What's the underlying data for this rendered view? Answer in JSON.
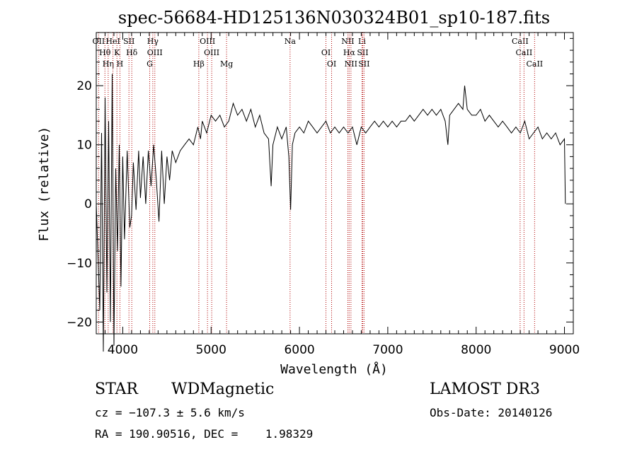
{
  "chart_data": {
    "type": "line",
    "title": "spec-56684-HD125136N030324B01_sp10-187.fits",
    "xlabel": "Wavelength (Å)",
    "ylabel": "Flux (relative)",
    "xlim": [
      3700,
      9100
    ],
    "ylim": [
      -22,
      29
    ],
    "x_ticks": [
      4000,
      5000,
      6000,
      7000,
      8000,
      9000
    ],
    "y_ticks": [
      -20,
      -10,
      0,
      10,
      20
    ],
    "grid": false,
    "series": [
      {
        "color": "#000000",
        "points": [
          [
            3700,
            0
          ],
          [
            3740,
            -18
          ],
          [
            3760,
            12
          ],
          [
            3780,
            -25
          ],
          [
            3800,
            18
          ],
          [
            3820,
            -15
          ],
          [
            3840,
            14
          ],
          [
            3860,
            -20
          ],
          [
            3880,
            22
          ],
          [
            3900,
            -24
          ],
          [
            3920,
            6
          ],
          [
            3940,
            -8
          ],
          [
            3960,
            10
          ],
          [
            3980,
            -14
          ],
          [
            4000,
            8
          ],
          [
            4020,
            -6
          ],
          [
            4050,
            9
          ],
          [
            4080,
            -4
          ],
          [
            4100,
            -2
          ],
          [
            4120,
            7
          ],
          [
            4150,
            -1
          ],
          [
            4180,
            9
          ],
          [
            4200,
            1
          ],
          [
            4230,
            8
          ],
          [
            4260,
            0
          ],
          [
            4290,
            9
          ],
          [
            4320,
            3
          ],
          [
            4350,
            10
          ],
          [
            4380,
            4
          ],
          [
            4410,
            -3
          ],
          [
            4440,
            9
          ],
          [
            4470,
            0
          ],
          [
            4500,
            8
          ],
          [
            4530,
            4
          ],
          [
            4560,
            9
          ],
          [
            4600,
            7
          ],
          [
            4650,
            9
          ],
          [
            4700,
            10
          ],
          [
            4750,
            11
          ],
          [
            4800,
            10
          ],
          [
            4850,
            13
          ],
          [
            4880,
            11
          ],
          [
            4900,
            14
          ],
          [
            4950,
            12
          ],
          [
            5000,
            15
          ],
          [
            5050,
            14
          ],
          [
            5100,
            15
          ],
          [
            5150,
            13
          ],
          [
            5200,
            14
          ],
          [
            5250,
            17
          ],
          [
            5300,
            15
          ],
          [
            5350,
            16
          ],
          [
            5400,
            14
          ],
          [
            5450,
            16
          ],
          [
            5500,
            13
          ],
          [
            5550,
            15
          ],
          [
            5600,
            12
          ],
          [
            5650,
            11
          ],
          [
            5680,
            3
          ],
          [
            5700,
            10
          ],
          [
            5750,
            13
          ],
          [
            5800,
            11
          ],
          [
            5850,
            13
          ],
          [
            5880,
            8
          ],
          [
            5900,
            -1
          ],
          [
            5920,
            10
          ],
          [
            5950,
            12
          ],
          [
            6000,
            13
          ],
          [
            6050,
            12
          ],
          [
            6100,
            14
          ],
          [
            6150,
            13
          ],
          [
            6200,
            12
          ],
          [
            6250,
            13
          ],
          [
            6300,
            14
          ],
          [
            6350,
            12
          ],
          [
            6400,
            13
          ],
          [
            6450,
            12
          ],
          [
            6500,
            13
          ],
          [
            6550,
            12
          ],
          [
            6600,
            13
          ],
          [
            6650,
            10
          ],
          [
            6700,
            13
          ],
          [
            6750,
            12
          ],
          [
            6800,
            13
          ],
          [
            6850,
            14
          ],
          [
            6900,
            13
          ],
          [
            6950,
            14
          ],
          [
            7000,
            13
          ],
          [
            7050,
            14
          ],
          [
            7100,
            13
          ],
          [
            7150,
            14
          ],
          [
            7200,
            14
          ],
          [
            7250,
            15
          ],
          [
            7300,
            14
          ],
          [
            7350,
            15
          ],
          [
            7400,
            16
          ],
          [
            7450,
            15
          ],
          [
            7500,
            16
          ],
          [
            7550,
            15
          ],
          [
            7600,
            16
          ],
          [
            7650,
            14
          ],
          [
            7680,
            10
          ],
          [
            7700,
            15
          ],
          [
            7750,
            16
          ],
          [
            7800,
            17
          ],
          [
            7850,
            16
          ],
          [
            7870,
            20
          ],
          [
            7900,
            16
          ],
          [
            7950,
            15
          ],
          [
            8000,
            15
          ],
          [
            8050,
            16
          ],
          [
            8100,
            14
          ],
          [
            8150,
            15
          ],
          [
            8200,
            14
          ],
          [
            8250,
            13
          ],
          [
            8300,
            14
          ],
          [
            8350,
            13
          ],
          [
            8400,
            12
          ],
          [
            8450,
            13
          ],
          [
            8500,
            12
          ],
          [
            8550,
            14
          ],
          [
            8600,
            11
          ],
          [
            8650,
            12
          ],
          [
            8700,
            13
          ],
          [
            8750,
            11
          ],
          [
            8800,
            12
          ],
          [
            8850,
            11
          ],
          [
            8900,
            12
          ],
          [
            8950,
            10
          ],
          [
            9000,
            11
          ],
          [
            9010,
            0
          ]
        ]
      }
    ],
    "lines": [
      {
        "label": "OII",
        "x": 3727
      },
      {
        "label": "Hθ",
        "x": 3798
      },
      {
        "label": "Hη",
        "x": 3835
      },
      {
        "label": "HeI",
        "x": 3889
      },
      {
        "label": "K",
        "x": 3934
      },
      {
        "label": "H",
        "x": 3968
      },
      {
        "label": "SII",
        "x": 4070
      },
      {
        "label": "Hδ",
        "x": 4102
      },
      {
        "label": "G",
        "x": 4305
      },
      {
        "label": "Hγ",
        "x": 4340
      },
      {
        "label": "OIII",
        "x": 4363
      },
      {
        "label": "Hβ",
        "x": 4861
      },
      {
        "label": "OIII",
        "x": 4959
      },
      {
        "label": "OIII",
        "x": 5007
      },
      {
        "label": "Mg",
        "x": 5175
      },
      {
        "label": "Na",
        "x": 5894
      },
      {
        "label": "OI",
        "x": 6300
      },
      {
        "label": "OI",
        "x": 6364
      },
      {
        "label": "NII",
        "x": 6548
      },
      {
        "label": "Hα",
        "x": 6563
      },
      {
        "label": "NII",
        "x": 6583
      },
      {
        "label": "Li",
        "x": 6708
      },
      {
        "label": "SII",
        "x": 6716
      },
      {
        "label": "SII",
        "x": 6731
      },
      {
        "label": "CaII",
        "x": 8498
      },
      {
        "label": "CaII",
        "x": 8542
      },
      {
        "label": "CaII",
        "x": 8662
      }
    ]
  },
  "info": {
    "class": "STAR",
    "subclass": "WDMagnetic",
    "survey": "LAMOST DR3",
    "cz": "cz = −107.3 ± 5.6 km/s",
    "obs_date": "Obs-Date: 20140126",
    "coords": "RA = 190.90516, DEC =    1.98329"
  }
}
